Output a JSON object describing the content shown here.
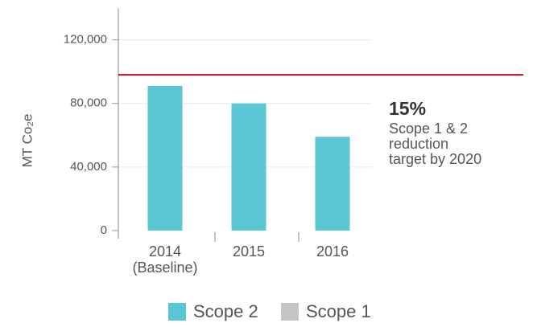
{
  "chart_data": {
    "type": "bar",
    "categories": [
      "2014 (Baseline)",
      "2015",
      "2016"
    ],
    "series": [
      {
        "name": "Scope 2",
        "color": "#5bc6d4",
        "values": [
          91000,
          80000,
          59000
        ]
      },
      {
        "name": "Scope 1",
        "color": "#c4c6c6",
        "values": [
          null,
          null,
          null
        ]
      }
    ],
    "ylabel": "MT Co₂e",
    "ylim": [
      0,
      140000
    ],
    "yticks": [
      0,
      {
        "value": 40000,
        "label": "40,000"
      },
      {
        "value": 80000,
        "label": "80,000"
      },
      {
        "value": 120000,
        "label": "120,000"
      }
    ],
    "grid": true,
    "target_line": {
      "value": 98000,
      "color": "#b5121b"
    },
    "annotation": {
      "headline": "15%",
      "lines": [
        "Scope 1 & 2",
        "reduction",
        "target by 2020"
      ]
    },
    "legend": "bottom"
  }
}
